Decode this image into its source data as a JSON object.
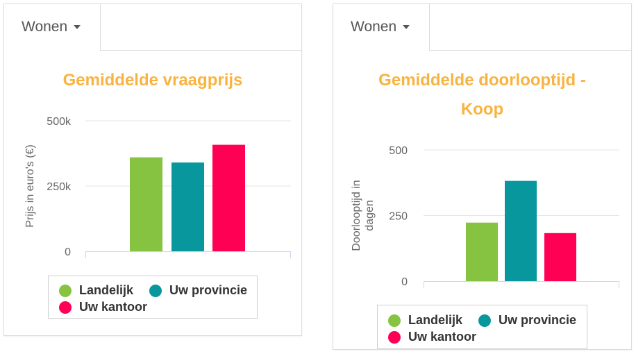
{
  "panels": [
    {
      "tab_label": "Wonen",
      "title_lines": [
        "Gemiddelde vraagprijs"
      ],
      "ylabel_lines": [
        "Prijs in euro's (€)"
      ],
      "ticks": [
        "0",
        "250k",
        "500k"
      ],
      "legend": [
        "Landelijk",
        "Uw provincie",
        "Uw kantoor"
      ]
    },
    {
      "tab_label": "Wonen",
      "title_lines": [
        "Gemiddelde doorlooptijd -",
        "Koop"
      ],
      "ylabel_lines": [
        "Doorlooptijd in",
        "dagen"
      ],
      "ticks": [
        "0",
        "250",
        "500"
      ],
      "legend": [
        "Landelijk",
        "Uw provincie",
        "Uw kantoor"
      ]
    }
  ],
  "colors": {
    "title": "#f9b340",
    "series": [
      "#85c341",
      "#08979c",
      "#ff0054"
    ],
    "grid": "#e6e6e6",
    "axis": "#ccd6eb"
  },
  "chart_data": [
    {
      "type": "bar",
      "title": "Gemiddelde vraagprijs",
      "ylabel": "Prijs in euro's (€)",
      "ylim": [
        0,
        500000
      ],
      "yticks": [
        0,
        250000,
        500000
      ],
      "grid": true,
      "legend_position": "bottom",
      "series": [
        {
          "name": "Landelijk",
          "values": [
            360000
          ]
        },
        {
          "name": "Uw provincie",
          "values": [
            340000
          ]
        },
        {
          "name": "Uw kantoor",
          "values": [
            408000
          ]
        }
      ]
    },
    {
      "type": "bar",
      "title": "Gemiddelde doorlooptijd - Koop",
      "ylabel": "Doorlooptijd in dagen",
      "ylim": [
        0,
        500
      ],
      "yticks": [
        0,
        250,
        500
      ],
      "grid": true,
      "legend_position": "bottom",
      "series": [
        {
          "name": "Landelijk",
          "values": [
            223
          ]
        },
        {
          "name": "Uw provincie",
          "values": [
            382
          ]
        },
        {
          "name": "Uw kantoor",
          "values": [
            183
          ]
        }
      ]
    }
  ]
}
